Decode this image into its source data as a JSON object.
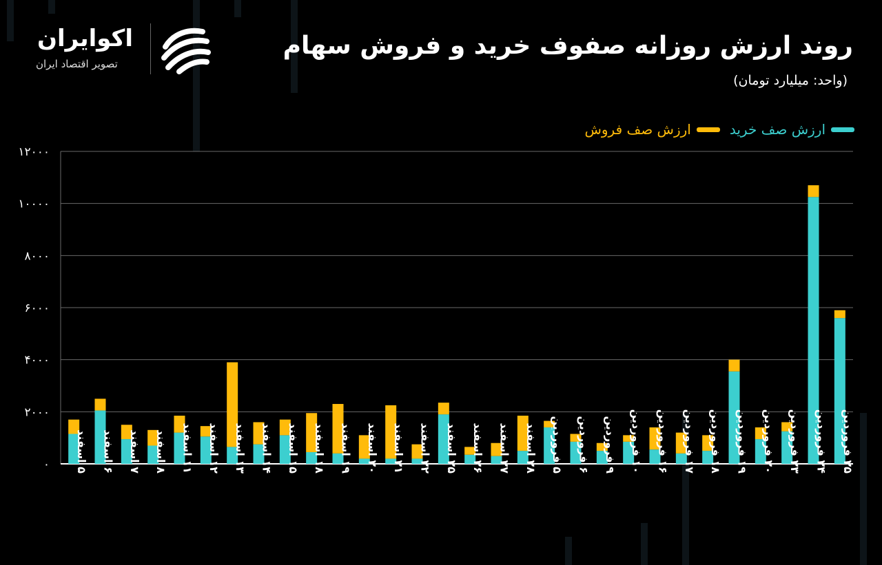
{
  "header": {
    "title": "روند ارزش روزانه صفوف خرید و فروش سهام",
    "subtitle": "(واحد: میلیارد تومان)"
  },
  "logo": {
    "name": "اکوایران",
    "tagline": "تصویر اقتصاد ایران"
  },
  "colors": {
    "buy": "#3ccfcf",
    "sell": "#ffbb0a",
    "grid": "#6a6a6a",
    "axis": "#ffffff"
  },
  "chart_data": {
    "type": "bar",
    "stacked": true,
    "ylim": [
      0,
      12000
    ],
    "yticks": [
      "۰",
      "۲۰۰۰",
      "۴۰۰۰",
      "۶۰۰۰",
      "۸۰۰۰",
      "۱۰۰۰۰",
      "۱۲۰۰۰"
    ],
    "ytick_values": [
      0,
      2000,
      4000,
      6000,
      8000,
      10000,
      12000
    ],
    "grid": true,
    "legend_position": "top-right",
    "categories": [
      "۵ اسفند",
      "۶ اسفند",
      "۷ اسفند",
      "۸ اسفند",
      "۱۱ اسفند",
      "۱۲ اسفند",
      "۱۳ اسفند",
      "۱۴ اسفند",
      "۱۵ اسفند",
      "۱۸ اسفند",
      "۱۹ اسفند",
      "۲۰ اسفند",
      "۲۱ اسفند",
      "۲۲ اسفند",
      "۲۵ اسفند",
      "۲۶ اسفند",
      "۲۷ اسفند",
      "۲۸ اسفند",
      "۵ فروردین",
      "۶ فروردین",
      "۹ فروردین",
      "۱۰ فروردین",
      "۱۶ فروردین",
      "۱۷ فروردین",
      "۱۸ فروردین",
      "۱۹ فروردین",
      "۲۰ فروردین",
      "۲۳ فروردین",
      "۲۴ فروردین",
      "۲۵ فروردین"
    ],
    "series": [
      {
        "name": "ارزش صف خرید",
        "values": [
          1150,
          2050,
          950,
          700,
          1200,
          1050,
          650,
          750,
          1100,
          450,
          400,
          200,
          200,
          200,
          1900,
          350,
          300,
          500,
          1400,
          850,
          500,
          850,
          550,
          400,
          500,
          3550,
          950,
          1250,
          10250,
          5600
        ]
      },
      {
        "name": "ارزش صف فروش",
        "values": [
          550,
          450,
          550,
          600,
          650,
          400,
          3250,
          850,
          600,
          1500,
          1900,
          900,
          2050,
          550,
          450,
          300,
          500,
          1350,
          250,
          300,
          300,
          250,
          850,
          800,
          600,
          450,
          450,
          350,
          450,
          300
        ]
      }
    ]
  }
}
